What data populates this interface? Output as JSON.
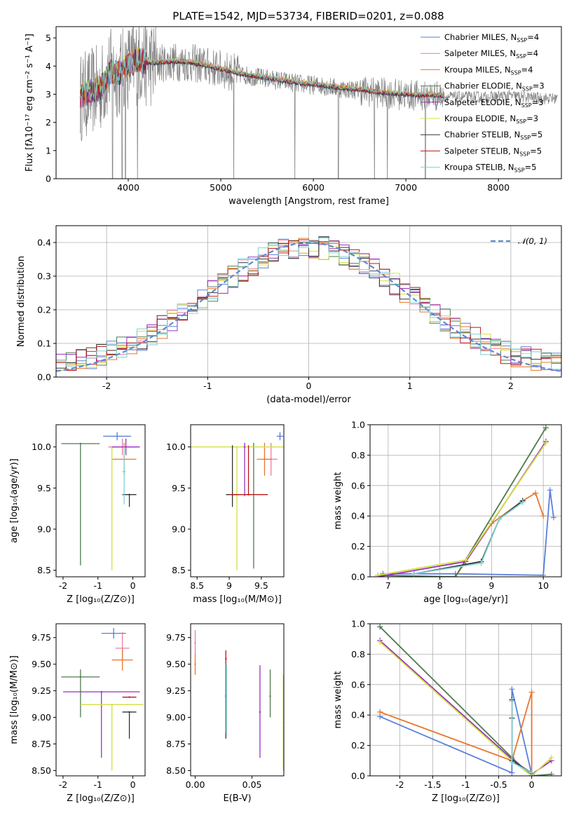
{
  "title": "PLATE=1542, MJD=53734, FIBERID=0201, z=0.088",
  "colors": {
    "Chabrier MILES": "#5b7fd9",
    "Salpeter MILES": "#e87fa0",
    "Kroupa MILES": "#e8762d",
    "Chabrier ELODIE": "#4f7a4f",
    "Salpeter ELODIE": "#9a2fc2",
    "Kroupa ELODIE": "#d2e040",
    "Chabrier STELIB": "#333333",
    "Salpeter STELIB": "#b81818",
    "Kroupa STELIB": "#7fd3d3",
    "data": "#808080",
    "gauss": "#5b8bd0"
  },
  "chart_data": [
    {
      "id": "spectrum",
      "type": "line",
      "title": "PLATE=1542, MJD=53734, FIBERID=0201, z=0.088",
      "xlabel": "wavelength [Angstrom, rest frame]",
      "ylabel": "Flux [fλ10⁻¹⁷ erg cm⁻² s⁻¹ A⁻¹]",
      "xlim": [
        3220,
        8680
      ],
      "ylim": [
        0,
        5.4
      ],
      "xticks": [
        4000,
        5000,
        6000,
        7000,
        8000
      ],
      "yticks": [
        0,
        1,
        2,
        3,
        4,
        5
      ],
      "legend": [
        {
          "name": "Chabrier MILES",
          "nssp": "4"
        },
        {
          "name": "Salpeter MILES",
          "nssp": "4"
        },
        {
          "name": "Kroupa MILES",
          "nssp": "4"
        },
        {
          "name": "Chabrier ELODIE",
          "nssp": "3"
        },
        {
          "name": "Salpeter ELODIE",
          "nssp": "3"
        },
        {
          "name": "Kroupa ELODIE",
          "nssp": "3"
        },
        {
          "name": "Chabrier STELIB",
          "nssp": "5"
        },
        {
          "name": "Salpeter STELIB",
          "nssp": "5"
        },
        {
          "name": "Kroupa STELIB",
          "nssp": "5"
        }
      ],
      "model_continuum": [
        [
          3500,
          2.9
        ],
        [
          3600,
          3.1
        ],
        [
          3700,
          3.2
        ],
        [
          3800,
          3.8
        ],
        [
          3900,
          3.7
        ],
        [
          4000,
          4.0
        ],
        [
          4100,
          4.2
        ],
        [
          4200,
          4.1
        ],
        [
          4300,
          4.1
        ],
        [
          4500,
          4.15
        ],
        [
          4700,
          4.1
        ],
        [
          4900,
          3.95
        ],
        [
          5100,
          3.8
        ],
        [
          5300,
          3.65
        ],
        [
          5500,
          3.55
        ],
        [
          5700,
          3.45
        ],
        [
          5900,
          3.35
        ],
        [
          6100,
          3.3
        ],
        [
          6300,
          3.2
        ],
        [
          6500,
          3.15
        ],
        [
          6700,
          3.05
        ],
        [
          6900,
          3.0
        ],
        [
          7100,
          2.95
        ],
        [
          7300,
          2.95
        ],
        [
          7500,
          2.9
        ],
        [
          7700,
          2.9
        ],
        [
          7900,
          2.9
        ],
        [
          8100,
          2.95
        ],
        [
          8300,
          2.9
        ],
        [
          8500,
          2.85
        ]
      ],
      "model_range": [
        3480,
        7420
      ]
    },
    {
      "id": "residuals",
      "type": "bar",
      "xlabel": "(data-model)/error",
      "ylabel": "Normed distribution",
      "xlim": [
        -2.5,
        2.5
      ],
      "ylim": [
        0,
        0.45
      ],
      "xticks": [
        -2,
        -1,
        0,
        1,
        2
      ],
      "yticks": [
        0.0,
        0.1,
        0.2,
        0.3,
        0.4
      ],
      "legend": [
        "𝒩(0, 1)"
      ],
      "bin_width": 0.1
    },
    {
      "id": "age_vs_Z",
      "type": "scatter",
      "xlabel": "Z [log₁₀(Z/Z⊙)]",
      "ylabel": "age  [log₁₀(age/yr)]",
      "xlim": [
        -2.2,
        0.35
      ],
      "ylim": [
        8.42,
        10.27
      ],
      "xticks": [
        -2,
        -1,
        0
      ],
      "yticks": [
        8.5,
        9.0,
        9.5,
        10.0
      ],
      "points": [
        {
          "model": "Chabrier MILES",
          "x": -0.45,
          "y": 10.13,
          "xerr": 0.4,
          "yerr": [
            0.05,
            0.05
          ]
        },
        {
          "model": "Kroupa MILES",
          "x": -0.25,
          "y": 9.85,
          "xerr": 0.35,
          "yerr": [
            0.2,
            0.2
          ]
        },
        {
          "model": "Salpeter MILES",
          "x": -0.3,
          "y": 10.0,
          "xerr": 0.4,
          "yerr": [
            0.1,
            0.1
          ]
        },
        {
          "model": "Chabrier ELODIE",
          "x": -1.5,
          "y": 10.04,
          "xerr": 0.55,
          "yerr": [
            1.48,
            0.0
          ]
        },
        {
          "model": "Kroupa ELODIE",
          "x": -0.6,
          "y": 10.0,
          "xerr": 0.0,
          "yerr": [
            1.5,
            0.0
          ]
        },
        {
          "model": "Salpeter ELODIE",
          "x": -0.2,
          "y": 10.0,
          "xerr": 0.4,
          "yerr": [
            0.1,
            0.1
          ]
        },
        {
          "model": "Chabrier STELIB",
          "x": -0.1,
          "y": 9.42,
          "xerr": 0.2,
          "yerr": [
            0.15,
            0.0
          ]
        },
        {
          "model": "Kroupa STELIB",
          "x": -0.25,
          "y": 9.7,
          "xerr": 0.05,
          "yerr": [
            0.4,
            0.3
          ]
        }
      ]
    },
    {
      "id": "age_vs_mass",
      "type": "scatter",
      "xlabel": "mass [log₁₀(M/M⊙)]",
      "ylabel": "",
      "xlim": [
        8.4,
        9.85
      ],
      "ylim": [
        8.42,
        10.27
      ],
      "xticks": [
        8.5,
        9.0,
        9.5
      ],
      "yticks": [
        8.5,
        9.0,
        9.5,
        10.0
      ],
      "points": [
        {
          "model": "Chabrier MILES",
          "x": 9.79,
          "y": 10.13,
          "xerr": 0.05,
          "yerr": [
            0.05,
            0.05
          ]
        },
        {
          "model": "Salpeter MILES",
          "x": 9.65,
          "y": 9.85,
          "xerr": 0.1,
          "yerr": [
            0.2,
            0.2
          ]
        },
        {
          "model": "Kroupa MILES",
          "x": 9.55,
          "y": 9.85,
          "xerr": 0.12,
          "yerr": [
            0.2,
            0.2
          ]
        },
        {
          "model": "Chabrier ELODIE",
          "x": 9.38,
          "y": 10.0,
          "xerr": 0.0,
          "yerr": [
            1.48,
            0.05
          ]
        },
        {
          "model": "Kroupa ELODIE",
          "x": 9.12,
          "y": 10.0,
          "xerr": 0.8,
          "yerr": [
            1.5,
            0.0
          ]
        },
        {
          "model": "Salpeter ELODIE",
          "x": 9.24,
          "y": 10.0,
          "xerr": 0.0,
          "yerr": [
            0.6,
            0.05
          ]
        },
        {
          "model": "Chabrier STELIB",
          "x": 9.05,
          "y": 9.42,
          "xerr": 0.1,
          "yerr": [
            0.15,
            0.6
          ]
        },
        {
          "model": "Salpeter STELIB",
          "x": 9.3,
          "y": 9.42,
          "xerr": 0.3,
          "yerr": [
            0.0,
            0.6
          ]
        }
      ]
    },
    {
      "id": "weight_vs_age",
      "type": "line",
      "xlabel": "age  [log₁₀(age/yr)]",
      "ylabel": "mass weight",
      "xlim": [
        6.65,
        10.35
      ],
      "ylim": [
        0,
        1.0
      ],
      "xticks": [
        7,
        8,
        9,
        10
      ],
      "yticks": [
        0.0,
        0.2,
        0.4,
        0.6,
        0.8,
        1.0
      ],
      "series": [
        {
          "model": "Chabrier MILES",
          "x": [
            6.9,
            8.3,
            10.0,
            10.13,
            10.2
          ],
          "y": [
            0.02,
            0.02,
            0.01,
            0.57,
            0.39
          ]
        },
        {
          "model": "Kroupa MILES",
          "x": [
            8.3,
            8.5,
            9.0,
            9.6,
            9.85,
            10.0
          ],
          "y": [
            0.0,
            0.1,
            0.35,
            0.5,
            0.55,
            0.4
          ]
        },
        {
          "model": "Chabrier ELODIE",
          "x": [
            6.8,
            8.3,
            10.05
          ],
          "y": [
            0.01,
            0.0,
            0.98
          ]
        },
        {
          "model": "Salpeter ELODIE",
          "x": [
            6.8,
            8.5,
            10.05
          ],
          "y": [
            0.0,
            0.1,
            0.89
          ]
        },
        {
          "model": "Kroupa ELODIE",
          "x": [
            6.8,
            8.5,
            10.05
          ],
          "y": [
            0.01,
            0.11,
            0.88
          ]
        },
        {
          "model": "Chabrier STELIB",
          "x": [
            7.5,
            8.8,
            9.15,
            9.6
          ],
          "y": [
            0.02,
            0.1,
            0.38,
            0.5
          ]
        },
        {
          "model": "Kroupa STELIB",
          "x": [
            7.5,
            8.8,
            9.15,
            9.6
          ],
          "y": [
            0.02,
            0.09,
            0.38,
            0.49
          ]
        }
      ]
    },
    {
      "id": "mass_vs_Z",
      "type": "scatter",
      "xlabel": "Z [log₁₀(Z/Z⊙)]",
      "ylabel": "mass [log₁₀(M/M⊙)]",
      "xlim": [
        -2.2,
        0.35
      ],
      "ylim": [
        8.45,
        9.88
      ],
      "xticks": [
        -2,
        -1,
        0
      ],
      "yticks": [
        8.5,
        8.75,
        9.0,
        9.25,
        9.5,
        9.75
      ],
      "points": [
        {
          "model": "Chabrier MILES",
          "x": -0.55,
          "y": 9.79,
          "xerr": 0.35,
          "yerr": [
            0.05,
            0.05
          ]
        },
        {
          "model": "Salpeter MILES",
          "x": -0.3,
          "y": 9.65,
          "xerr": 0.2,
          "yerr": [
            0.1,
            0.15
          ]
        },
        {
          "model": "Kroupa MILES",
          "x": -0.3,
          "y": 9.54,
          "xerr": 0.3,
          "yerr": [
            0.1,
            0.1
          ]
        },
        {
          "model": "Chabrier ELODIE",
          "x": -1.5,
          "y": 9.38,
          "xerr": 0.55,
          "yerr": [
            0.38,
            0.07
          ]
        },
        {
          "model": "Salpeter ELODIE",
          "x": -0.9,
          "y": 9.24,
          "xerr": 1.1,
          "yerr": [
            0.62,
            0.0
          ]
        },
        {
          "model": "Kroupa ELODIE",
          "x": -0.6,
          "y": 9.12,
          "xerr": 0.9,
          "yerr": [
            0.62,
            0.0
          ]
        },
        {
          "model": "Salpeter STELIB",
          "x": -0.1,
          "y": 9.19,
          "xerr": 0.2,
          "yerr": [
            0.0,
            0.0
          ]
        },
        {
          "model": "Chabrier STELIB",
          "x": -0.1,
          "y": 9.05,
          "xerr": 0.2,
          "yerr": [
            0.25,
            0.0
          ]
        }
      ]
    },
    {
      "id": "mass_vs_ebv",
      "type": "scatter",
      "xlabel": "E(B-V)",
      "ylabel": "",
      "xlim": [
        -0.004,
        0.078
      ],
      "ylim": [
        8.45,
        9.88
      ],
      "xticks": [
        0.0,
        0.05
      ],
      "yticks": [
        8.5,
        8.75,
        9.0,
        9.25,
        9.5,
        9.75
      ],
      "points": [
        {
          "model": "Salpeter MILES",
          "x": 0.0,
          "y": 9.7,
          "yerr": [
            0.1,
            0.12
          ]
        },
        {
          "model": "Kroupa MILES",
          "x": 0.0,
          "y": 9.5,
          "yerr": [
            0.1,
            0.1
          ]
        },
        {
          "model": "Salpeter STELIB",
          "x": 0.027,
          "y": 9.55,
          "yerr": [
            0.05,
            0.08
          ]
        },
        {
          "model": "Chabrier STELIB",
          "x": 0.027,
          "y": 9.2,
          "yerr": [
            0.4,
            0.3
          ]
        },
        {
          "model": "Kroupa STELIB",
          "x": 0.0275,
          "y": 9.2,
          "yerr": [
            0.35,
            0.3
          ]
        },
        {
          "model": "Salpeter ELODIE",
          "x": 0.057,
          "y": 9.05,
          "yerr": [
            0.43,
            0.44
          ]
        },
        {
          "model": "Chabrier ELODIE",
          "x": 0.066,
          "y": 9.2,
          "yerr": [
            0.2,
            0.25
          ]
        },
        {
          "model": "Kroupa ELODIE",
          "x": 0.0775,
          "y": 8.95,
          "yerr": [
            0.45,
            0.45
          ]
        }
      ]
    },
    {
      "id": "weight_vs_Z",
      "type": "line",
      "xlabel": "Z [log₁₀(Z/Z⊙)]",
      "ylabel": "mass weight",
      "xlim": [
        -2.45,
        0.45
      ],
      "ylim": [
        0,
        1.0
      ],
      "xticks": [
        -2.0,
        -1.5,
        -1.0,
        -0.5,
        0.0
      ],
      "series": [
        {
          "model": "Chabrier MILES",
          "x": [
            -2.3,
            -0.3,
            -0.3,
            0.0
          ],
          "y": [
            0.39,
            0.02,
            0.57,
            0.01
          ]
        },
        {
          "model": "Kroupa MILES",
          "x": [
            -2.3,
            -0.3,
            0.0,
            0.0
          ],
          "y": [
            0.42,
            0.1,
            0.55,
            0.01
          ]
        },
        {
          "model": "Chabrier ELODIE",
          "x": [
            -2.3,
            -0.3,
            0.0,
            0.3
          ],
          "y": [
            0.98,
            0.12,
            0.0,
            0.01
          ]
        },
        {
          "model": "Salpeter ELODIE",
          "x": [
            -2.3,
            -0.3,
            0.0,
            0.3
          ],
          "y": [
            0.89,
            0.11,
            0.01,
            0.1
          ]
        },
        {
          "model": "Kroupa ELODIE",
          "x": [
            -2.3,
            -0.3,
            0.0,
            0.3
          ],
          "y": [
            0.88,
            0.1,
            0.0,
            0.12
          ]
        },
        {
          "model": "Chabrier STELIB",
          "x": [
            -0.3,
            -0.3,
            -0.3,
            0.0
          ],
          "y": [
            0.5,
            0.38,
            0.1,
            0.02
          ]
        },
        {
          "model": "Kroupa STELIB",
          "x": [
            -0.3,
            -0.3,
            0.0
          ],
          "y": [
            0.49,
            0.09,
            0.02
          ]
        }
      ]
    }
  ]
}
